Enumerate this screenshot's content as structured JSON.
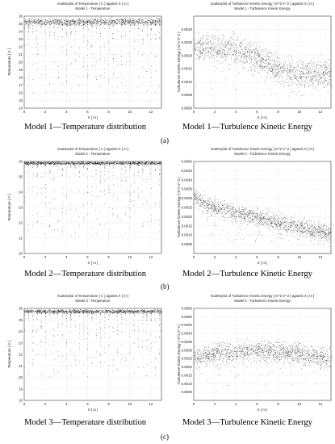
{
  "chart_data": [
    {
      "id": "m1-temp",
      "type": "scatter",
      "title": "Scatterplot of Temperature [ C ] against X [ m ]",
      "subtitle": "Model 1 - Temperature",
      "xlabel": "X [ m ]",
      "ylabel": "Temperature [ C ]",
      "xlim": [
        0,
        13
      ],
      "ylim": [
        14,
        26
      ],
      "xticks": [
        "0",
        "2",
        "4",
        "6",
        "8",
        "10",
        "12"
      ],
      "yticks": [
        "14",
        "15",
        "16",
        "17",
        "18",
        "19",
        "20",
        "21",
        "22",
        "23",
        "24",
        "25",
        "26"
      ],
      "grid": true,
      "band": {
        "center": 25.3,
        "spread": 0.35
      },
      "tail_min": 16.4,
      "caption": "Model 1—Temperature distribution"
    },
    {
      "id": "m1-tke",
      "type": "scatter",
      "title": "Scatterplot of Turbulence Kinetic Energy [ m^2 s^-2 ] against X [ m ]",
      "subtitle": "Model 1 - Turbulence Kinetic Energy",
      "xlabel": "X [ m ]",
      "ylabel": "Turbulence Kinetic Energy [ m^2 s^-2 ]",
      "xlim": [
        0,
        13
      ],
      "ylim": [
        0.0,
        0.0035
      ],
      "xticks": [
        "0",
        "2",
        "4",
        "6",
        "8",
        "10",
        "12"
      ],
      "yticks": [
        "0.0000",
        "0.0005",
        "0.0010",
        "0.0015",
        "0.0020",
        "0.0025",
        "0.0030"
      ],
      "grid": true,
      "band_curve": [
        [
          0,
          0.0024
        ],
        [
          2,
          0.0023
        ],
        [
          4,
          0.0022
        ],
        [
          6,
          0.0019
        ],
        [
          8,
          0.0015
        ],
        [
          10,
          0.0013
        ],
        [
          13,
          0.0013
        ]
      ],
      "spread": 0.00045,
      "caption": "Model 1—Turbulence Kinetic Energy"
    },
    {
      "id": "m2-temp",
      "type": "scatter",
      "title": "Scatterplot of Temperature [ C ] against X [ m ]",
      "subtitle": "Model 2 - Temperature",
      "xlabel": "X [ m ]",
      "ylabel": "Temperature [ C ]",
      "xlim": [
        0,
        13
      ],
      "ylim": [
        20,
        26
      ],
      "xticks": [
        "0",
        "2",
        "4",
        "6",
        "8",
        "10",
        "12"
      ],
      "yticks": [
        "20",
        "21",
        "22",
        "23",
        "24",
        "25",
        "26"
      ],
      "grid": true,
      "band": {
        "center": 25.9,
        "spread": 0.08
      },
      "tail_min": 21.2,
      "caption": "Model 2—Temperature distribution"
    },
    {
      "id": "m2-tke",
      "type": "scatter",
      "title": "Scatterplot of Turbulence Kinetic Energy [ m^2 s^-2 ] against X [ m ]",
      "subtitle": "Model 2 - Turbulence Kinetic Energy",
      "xlabel": "X [ m ]",
      "ylabel": "Turbulence Kinetic Energy [ m^2 s^-2 ]",
      "xlim": [
        0,
        13
      ],
      "ylim": [
        0.0,
        0.005
      ],
      "xticks": [
        "0",
        "2",
        "4",
        "6",
        "8",
        "10",
        "12"
      ],
      "yticks": [
        "0.0005",
        "0.0010",
        "0.0015",
        "0.0020",
        "0.0025",
        "0.0030",
        "0.0035",
        "0.0040",
        "0.0045",
        "0.0050"
      ],
      "grid": true,
      "band_curve": [
        [
          0,
          0.0032
        ],
        [
          1,
          0.0027
        ],
        [
          2,
          0.0025
        ],
        [
          4,
          0.0022
        ],
        [
          6,
          0.002
        ],
        [
          8,
          0.0017
        ],
        [
          10,
          0.0014
        ],
        [
          13,
          0.0011
        ]
      ],
      "spread": 0.0004,
      "caption": "Model 2—Turbulence Kinetic Energy"
    },
    {
      "id": "m3-temp",
      "type": "scatter",
      "title": "Scatterplot of Temperature [ C ] against X [ m ]",
      "subtitle": "Model 3 - Temperature",
      "xlabel": "X [ m ]",
      "ylabel": "Temperature [ C ]",
      "xlim": [
        0,
        13
      ],
      "ylim": [
        18,
        26
      ],
      "xticks": [
        "0",
        "2",
        "4",
        "6",
        "8",
        "10",
        "12"
      ],
      "yticks": [
        "18",
        "19",
        "20",
        "21",
        "22",
        "23",
        "24",
        "25",
        "26"
      ],
      "grid": true,
      "band": {
        "center": 25.75,
        "spread": 0.12
      },
      "tail_min": 20.2,
      "caption": "Model 3—Temperature distribution"
    },
    {
      "id": "m3-tke",
      "type": "scatter",
      "title": "Scatterplot of Turbulence Kinetic Energy [ m^2 s^-2 ] against X [ m ]",
      "subtitle": "Model 3 - Turbulence Kinetic Energy",
      "xlabel": "X [ m ]",
      "ylabel": "Turbulence Kinetic Energy [ m^2 s^-2 ]",
      "xlim": [
        0,
        13
      ],
      "ylim": [
        0.0,
        0.0055
      ],
      "xticks": [
        "0",
        "2",
        "4",
        "6",
        "8",
        "10",
        "12"
      ],
      "yticks": [
        "0.0005",
        "0.0010",
        "0.0015",
        "0.0020",
        "0.0025",
        "0.0030",
        "0.0035",
        "0.0040",
        "0.0045",
        "0.0050",
        "0.0055"
      ],
      "grid": true,
      "band_curve": [
        [
          0,
          0.0026
        ],
        [
          2,
          0.0028
        ],
        [
          4,
          0.0029
        ],
        [
          6,
          0.003
        ],
        [
          8,
          0.0029
        ],
        [
          10,
          0.0028
        ],
        [
          13,
          0.0025
        ]
      ],
      "spread": 0.0005,
      "caption": "Model 3—Turbulence Kinetic Energy"
    }
  ],
  "row_labels": [
    "(a)",
    "(b)",
    "(c)"
  ],
  "colors": {
    "dots": "#000000",
    "grid": "#c8c8c8",
    "axis": "#333333"
  }
}
